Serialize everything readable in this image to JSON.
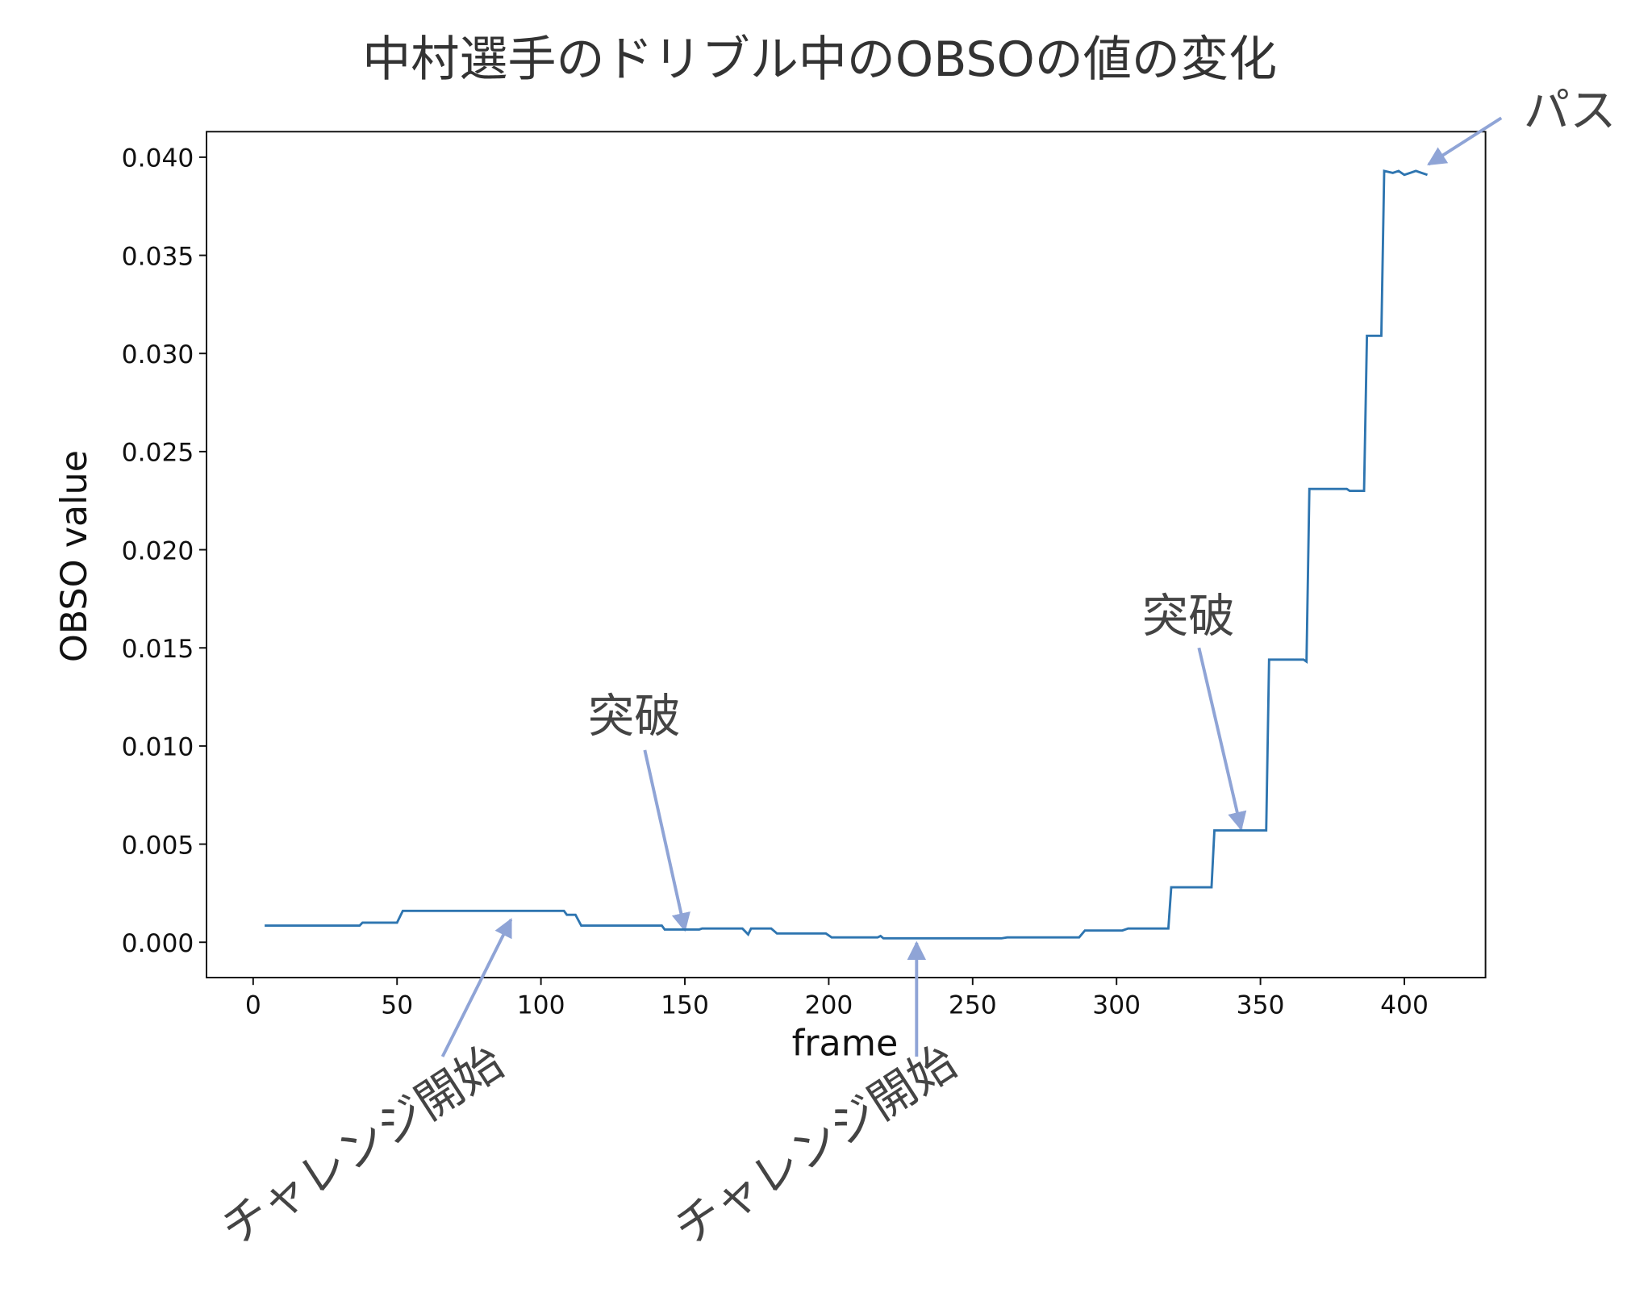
{
  "chart_data": {
    "type": "line",
    "title": "中村選手のドリブル中のOBSOの値の変化",
    "xlabel": "frame",
    "ylabel": "OBSO value",
    "color": "#2e75b0",
    "x": [
      4,
      37,
      38,
      50,
      52,
      108,
      109,
      112,
      114,
      142,
      143,
      155,
      156,
      170,
      172,
      173,
      180,
      182,
      199,
      201,
      217,
      218,
      219,
      260,
      262,
      287,
      289,
      302,
      304,
      318,
      319,
      333,
      334,
      352,
      353,
      365,
      366,
      367,
      380,
      381,
      386,
      387,
      392,
      393,
      396,
      398,
      400,
      402,
      404,
      406,
      408
    ],
    "values": [
      0.00085,
      0.00085,
      0.001,
      0.001,
      0.0016,
      0.0016,
      0.0014,
      0.0014,
      0.00085,
      0.00085,
      0.00065,
      0.00065,
      0.0007,
      0.0007,
      0.0004,
      0.0007,
      0.0007,
      0.00045,
      0.00045,
      0.00025,
      0.00025,
      0.00032,
      0.0002,
      0.0002,
      0.00025,
      0.00025,
      0.0006,
      0.0006,
      0.0007,
      0.0007,
      0.0028,
      0.0028,
      0.0057,
      0.0057,
      0.0144,
      0.0144,
      0.0143,
      0.0231,
      0.0231,
      0.023,
      0.023,
      0.0309,
      0.0309,
      0.0393,
      0.0392,
      0.0393,
      0.0391,
      0.0392,
      0.0393,
      0.0392,
      0.0391
    ],
    "xlim": [
      -16.2,
      428.2
    ],
    "ylim": [
      -0.0018,
      0.0413
    ],
    "xticks": [
      0,
      50,
      100,
      150,
      200,
      250,
      300,
      350,
      400
    ],
    "yticks": [
      {
        "value": 0,
        "label": "0.000"
      },
      {
        "value": 0.005,
        "label": "0.005"
      },
      {
        "value": 0.01,
        "label": "0.010"
      },
      {
        "value": 0.015,
        "label": "0.015"
      },
      {
        "value": 0.02,
        "label": "0.020"
      },
      {
        "value": 0.025,
        "label": "0.025"
      },
      {
        "value": 0.03,
        "label": "0.030"
      },
      {
        "value": 0.035,
        "label": "0.035"
      },
      {
        "value": 0.04,
        "label": "0.040"
      }
    ],
    "annotations": [
      "パス",
      "突破",
      "突破",
      "チャレンジ開始",
      "チャレンジ開始"
    ]
  }
}
